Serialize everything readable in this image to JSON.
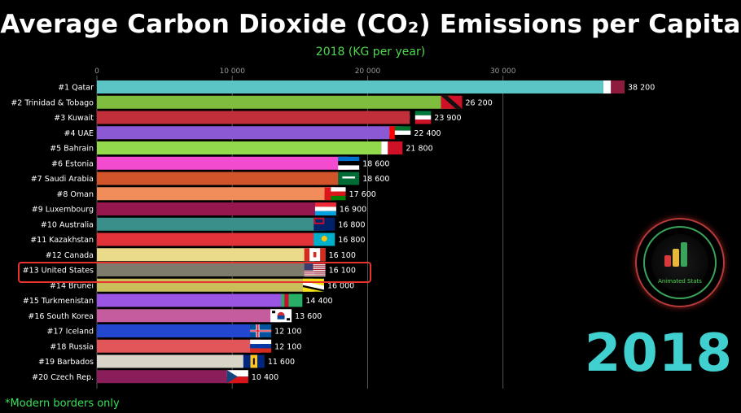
{
  "header": {
    "title": "Average Carbon Dioxide (CO₂) Emissions per Capita",
    "subtitle": "2018 (KG per year)"
  },
  "year_display": "2018",
  "footnote": "*Modern borders only",
  "logo": {
    "brand": "Animated Stats"
  },
  "colors": {
    "background": "#000000",
    "subtitle": "#4fd84f",
    "year": "#3fd0cf",
    "highlight": "#e8322c"
  },
  "chart_data": {
    "type": "bar",
    "orientation": "horizontal",
    "title": "Average Carbon Dioxide (CO₂) Emissions per Capita",
    "subtitle": "2018 (KG per year)",
    "xlim": [
      0,
      38200
    ],
    "x_ticks": [
      0,
      10000,
      20000,
      30000
    ],
    "x_tick_labels": [
      "0",
      "10 000",
      "20 000",
      "30 000"
    ],
    "grid": "vertical",
    "highlighted": "#13 United States",
    "bars": [
      {
        "label": "#1 Qatar",
        "value": 38200,
        "value_label": "38 200",
        "color": "#5bc4c4",
        "flag": "qatar-flag"
      },
      {
        "label": "#2 Trinidad & Tobago",
        "value": 26200,
        "value_label": "26 200",
        "color": "#7ebd3e",
        "flag": "trinidad-tobago-flag"
      },
      {
        "label": "#3 Kuwait",
        "value": 23900,
        "value_label": "23 900",
        "color": "#c1303a",
        "flag": "kuwait-flag"
      },
      {
        "label": "#4 UAE",
        "value": 22400,
        "value_label": "22 400",
        "color": "#8c59d4",
        "flag": "uae-flag"
      },
      {
        "label": "#5 Bahrain",
        "value": 21800,
        "value_label": "21 800",
        "color": "#93d94c",
        "flag": "bahrain-flag"
      },
      {
        "label": "#6 Estonia",
        "value": 18600,
        "value_label": "18 600",
        "color": "#f24bd0",
        "flag": "estonia-flag"
      },
      {
        "label": "#7 Saudi Arabia",
        "value": 18600,
        "value_label": "18 600",
        "color": "#d2542b",
        "flag": "saudi-arabia-flag"
      },
      {
        "label": "#8 Oman",
        "value": 17600,
        "value_label": "17 600",
        "color": "#f08d5b",
        "flag": "oman-flag"
      },
      {
        "label": "#9 Luxembourg",
        "value": 16900,
        "value_label": "16 900",
        "color": "#96174d",
        "flag": "luxembourg-flag"
      },
      {
        "label": "#10 Australia",
        "value": 16800,
        "value_label": "16 800",
        "color": "#3a8f8a",
        "flag": "australia-flag"
      },
      {
        "label": "#11 Kazakhstan",
        "value": 16800,
        "value_label": "16 800",
        "color": "#e2333b",
        "flag": "kazakhstan-flag"
      },
      {
        "label": "#12 Canada",
        "value": 16100,
        "value_label": "16 100",
        "color": "#eadb8a",
        "flag": "canada-flag"
      },
      {
        "label": "#13 United States",
        "value": 16100,
        "value_label": "16 100",
        "color": "#7d7c6c",
        "flag": "usa-flag"
      },
      {
        "label": "#14 Brunei",
        "value": 16000,
        "value_label": "16 000",
        "color": "#c8bf5a",
        "flag": "brunei-flag"
      },
      {
        "label": "#15 Turkmenistan",
        "value": 14400,
        "value_label": "14 400",
        "color": "#9b55e3",
        "flag": "turkmenistan-flag"
      },
      {
        "label": "#16 South Korea",
        "value": 13600,
        "value_label": "13 600",
        "color": "#c45c9e",
        "flag": "south-korea-flag"
      },
      {
        "label": "#17 Iceland",
        "value": 12100,
        "value_label": "12 100",
        "color": "#2348cf",
        "flag": "iceland-flag"
      },
      {
        "label": "#18 Russia",
        "value": 12100,
        "value_label": "12 100",
        "color": "#e2565a",
        "flag": "russia-flag"
      },
      {
        "label": "#19 Barbados",
        "value": 11600,
        "value_label": "11 600",
        "color": "#d9d4c8",
        "flag": "barbados-flag"
      },
      {
        "label": "#20 Czech Rep.",
        "value": 10400,
        "value_label": "10 400",
        "color": "#8a1e5a",
        "flag": "czech-flag"
      }
    ]
  }
}
